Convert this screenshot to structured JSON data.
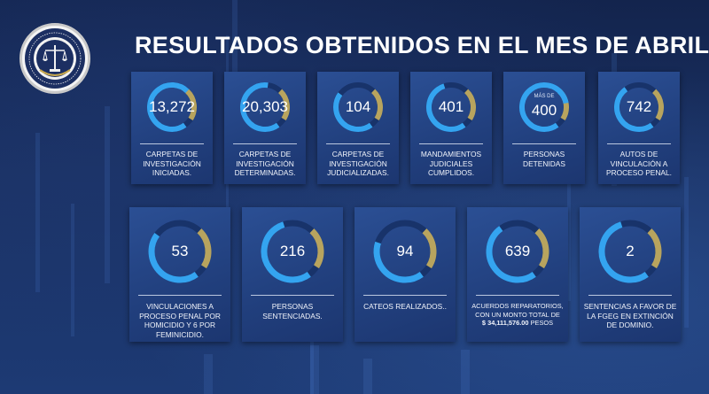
{
  "header": {
    "title": "RESULTADOS OBTENIDOS EN EL MES DE ABRIL"
  },
  "logo": {
    "text": "FISCALÍA GENERAL DEL ESTADO DE GUERRERO"
  },
  "colors": {
    "ring_blue": "#34a4f0",
    "ring_gold": "#b8a45e",
    "ring_track": "#18336a"
  },
  "cards": [
    {
      "value": "13,272",
      "label": "CARPETAS DE INVESTIGACIÓN INICIADAS.",
      "fill": 0.72
    },
    {
      "value": "20,303",
      "label": "CARPETAS DE INVESTIGACIÓN DETERMINADAS.",
      "fill": 0.62
    },
    {
      "value": "104",
      "label": "CARPETAS DE INVESTIGACIÓN JUDICIALIZADAS.",
      "fill": 0.45
    },
    {
      "value": "401",
      "label": "MANDAMIENTOS JUDICIALES CUMPLIDOS.",
      "fill": 0.55
    },
    {
      "value": "400",
      "prefix": "MÁS DE",
      "label": "PERSONAS DETENIDAS",
      "fill": 0.82
    },
    {
      "value": "742",
      "label": "AUTOS DE VINCULACIÓN A PROCESO PENAL.",
      "fill": 0.5
    },
    {
      "value": "53",
      "label": "VINCULACIONES A PROCESO PENAL POR HOMICIDIO Y 6 POR FEMINICIDIO.",
      "fill": 0.45
    },
    {
      "value": "216",
      "label": "PERSONAS SENTENCIADAS.",
      "fill": 0.55
    },
    {
      "value": "94",
      "label": "CATEOS REALIZADOS..",
      "fill": 0.4
    },
    {
      "value": "639",
      "label_lines": [
        "ACUERDOS REPARATORIOS,",
        "CON UN MONTO TOTAL DE"
      ],
      "amount": "$ 34,111,576.00",
      "amount_suffix": "PESOS",
      "fill": 0.5
    },
    {
      "value": "2",
      "label": "SENTENCIAS A FAVOR DE LA FGEG EN EXTINCIÓN DE DOMINIO.",
      "fill": 0.55
    }
  ]
}
